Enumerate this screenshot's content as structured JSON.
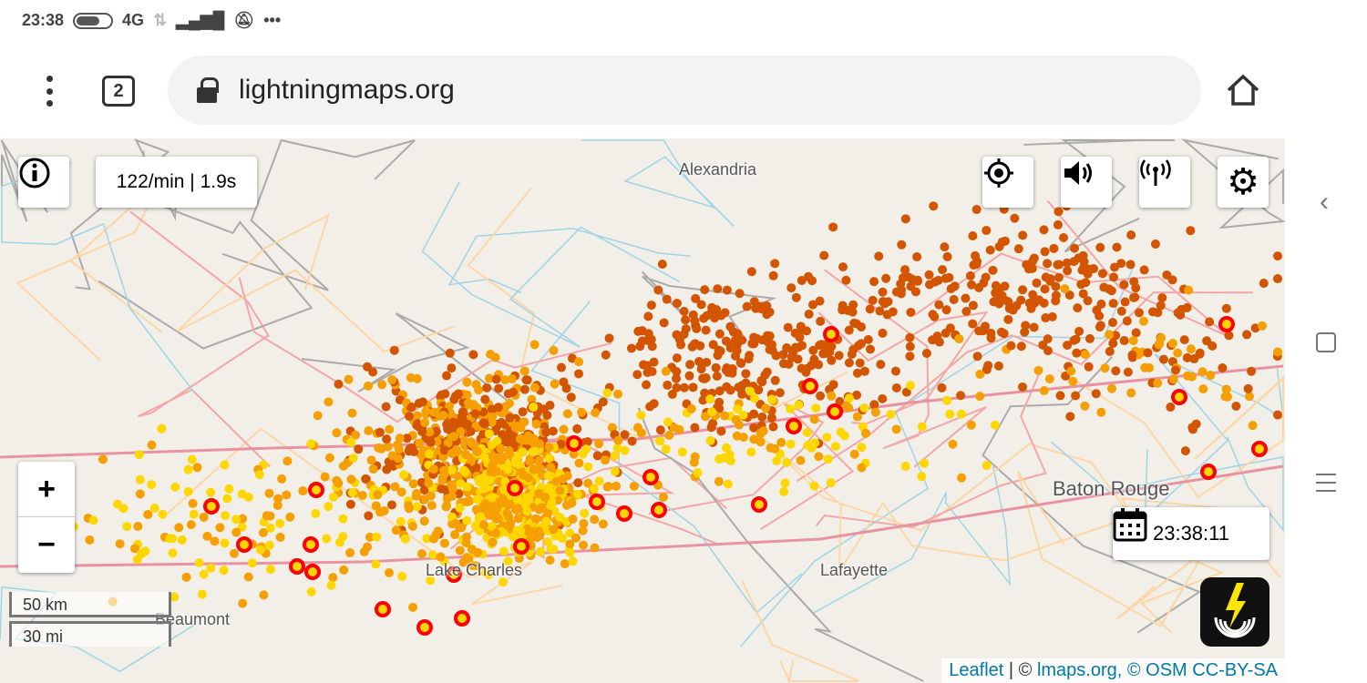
{
  "status": {
    "time": "23:38",
    "network": "4G"
  },
  "browser": {
    "tab_count": "2",
    "url": "lightningmaps.org"
  },
  "map": {
    "rate": "122/min | 1.9s",
    "time_display": "23:38:11",
    "cities": [
      "Alexandria",
      "Baton Rouge",
      "Lake Charles",
      "Lafayette",
      "Beaumont"
    ],
    "scale": {
      "km": "50 km",
      "mi": "30 mi"
    },
    "zoom_in": "+",
    "zoom_out": "−",
    "attribution": {
      "leaflet": "Leaflet",
      "sep": " | © ",
      "lmaps": "lmaps.org, © OSM CC-BY-SA"
    },
    "colors": {
      "recent": "#ffd700",
      "mid": "#f5a000",
      "old": "#d45500",
      "ring": "#ff0000"
    }
  }
}
